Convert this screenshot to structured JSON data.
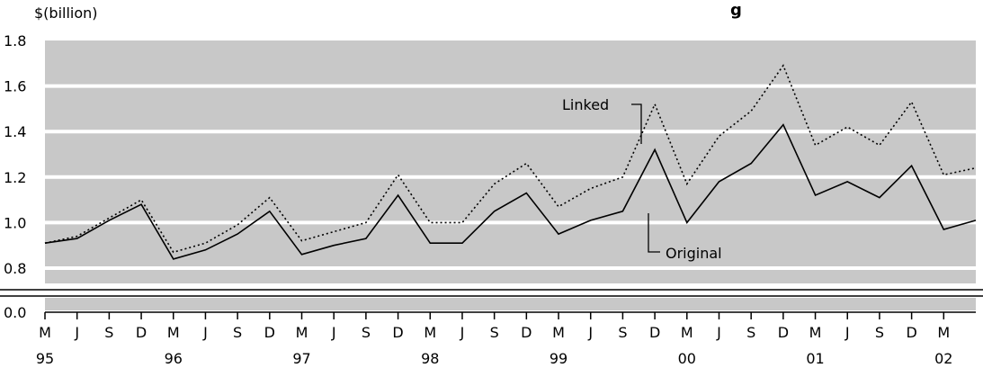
{
  "chart_data": {
    "type": "line",
    "title": "g",
    "ylabel": "$(billion)",
    "xlabel": "",
    "ylim": [
      0.7,
      1.8
    ],
    "y_ticks": [
      "0.0",
      "0.8",
      "1.0",
      "1.2",
      "1.4",
      "1.6",
      "1.8"
    ],
    "axis_break": true,
    "x_month_labels": [
      "M",
      "J",
      "S",
      "D",
      "M",
      "J",
      "S",
      "D",
      "M",
      "J",
      "S",
      "D",
      "M",
      "J",
      "S",
      "D",
      "M",
      "J",
      "S",
      "D",
      "M",
      "J",
      "S",
      "D",
      "M",
      "J",
      "S",
      "D",
      "M"
    ],
    "x_year_labels": [
      "95",
      "96",
      "97",
      "98",
      "99",
      "00",
      "01",
      "02"
    ],
    "series": [
      {
        "name": "Original",
        "values": [
          0.91,
          0.93,
          1.01,
          1.08,
          0.84,
          0.88,
          0.95,
          1.05,
          0.86,
          0.9,
          0.93,
          1.12,
          0.91,
          0.91,
          1.05,
          1.13,
          0.95,
          1.01,
          1.05,
          1.32,
          1.0,
          1.18,
          1.26,
          1.43,
          1.12,
          1.18,
          1.11,
          1.25,
          0.97,
          1.01
        ]
      },
      {
        "name": "Linked",
        "values": [
          0.91,
          0.94,
          1.02,
          1.1,
          0.87,
          0.91,
          0.99,
          1.11,
          0.92,
          0.96,
          1.0,
          1.21,
          1.0,
          1.0,
          1.17,
          1.26,
          1.07,
          1.15,
          1.2,
          1.52,
          1.17,
          1.38,
          1.49,
          1.69,
          1.34,
          1.42,
          1.34,
          1.53,
          1.21,
          1.24
        ]
      }
    ],
    "annotations": [
      {
        "text": "Linked",
        "series": "Linked"
      },
      {
        "text": "Original",
        "series": "Original"
      }
    ],
    "grid": true,
    "background_color": "#c8c8c8",
    "grid_color": "#ffffff",
    "line_color": "#000000"
  }
}
